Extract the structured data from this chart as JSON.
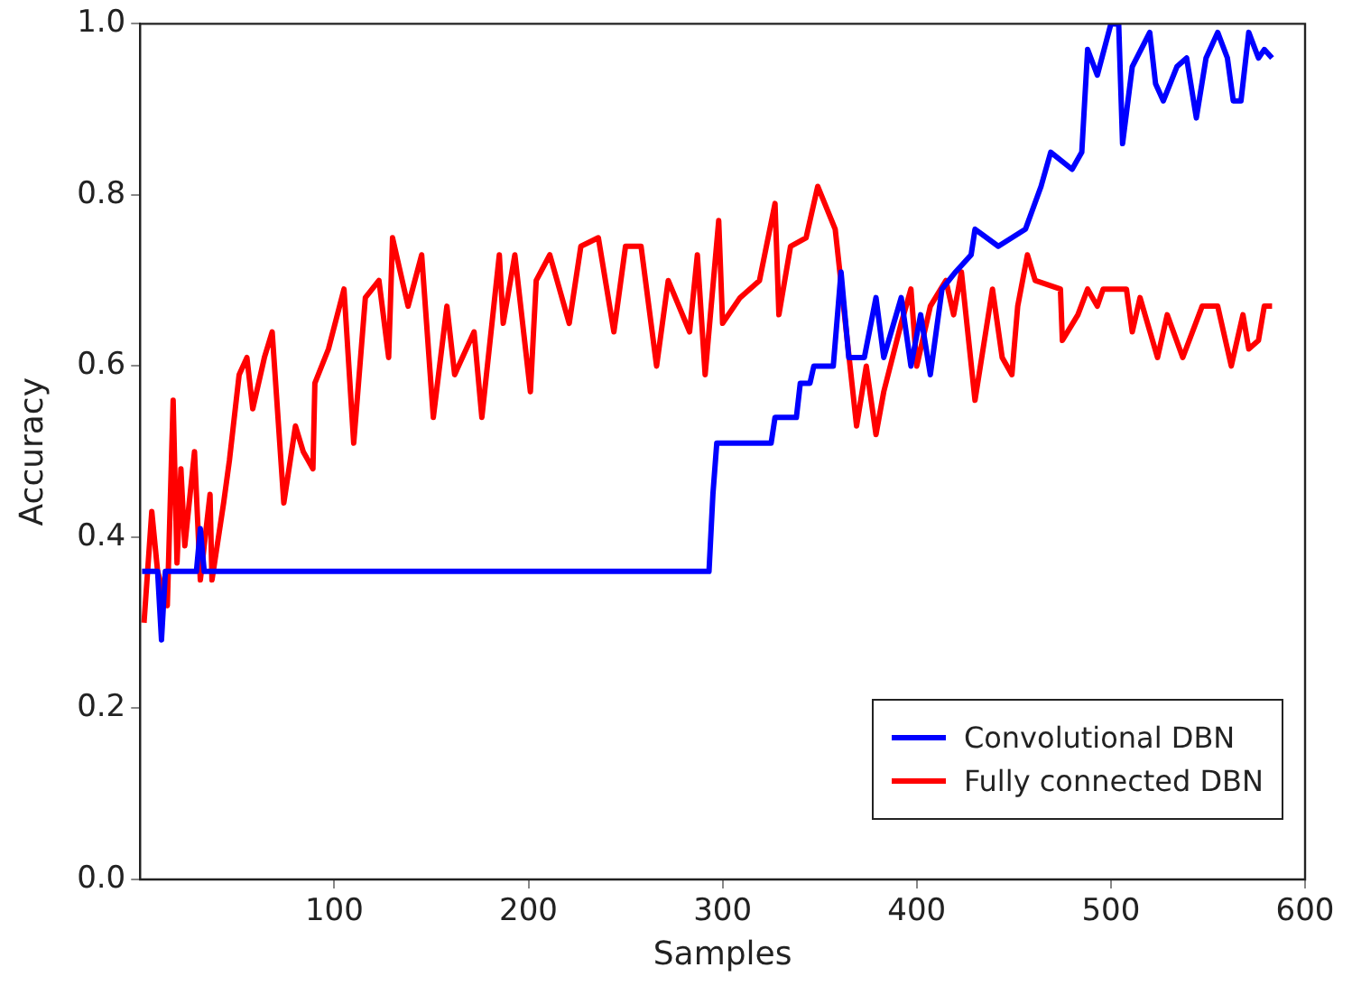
{
  "chart_data": {
    "type": "line",
    "xlabel": "Samples",
    "ylabel": "Accuracy",
    "xlim": [
      0,
      600
    ],
    "xticks": [
      100,
      200,
      300,
      400,
      500,
      600
    ],
    "ylim": [
      0,
      1
    ],
    "yticks": [
      {
        "value": 0,
        "label": "0.0"
      },
      0.2,
      0.4,
      0.6,
      0.8,
      {
        "value": 1,
        "label": "1.0"
      }
    ],
    "grid": false,
    "legend": "bottom right",
    "marker": "none",
    "line_style": "solid",
    "series": [
      {
        "name": "Convolutional DBN",
        "color": "#0000ff",
        "x": [
          1,
          9,
          11,
          13,
          29,
          31,
          33,
          293,
          295,
          297,
          325,
          327,
          338,
          340,
          345,
          347,
          357,
          361,
          365,
          373,
          379,
          383,
          392,
          397,
          402,
          407,
          413,
          420,
          428,
          430,
          442,
          456,
          464,
          469,
          480,
          485,
          488,
          493,
          500,
          504,
          506,
          511,
          520,
          523,
          527,
          534,
          539,
          544,
          549,
          555,
          560,
          563,
          567,
          571,
          576,
          579,
          583
        ],
        "values": [
          0.36,
          0.36,
          0.28,
          0.36,
          0.36,
          0.41,
          0.36,
          0.36,
          0.45,
          0.51,
          0.51,
          0.54,
          0.54,
          0.58,
          0.58,
          0.6,
          0.6,
          0.71,
          0.61,
          0.61,
          0.68,
          0.61,
          0.68,
          0.6,
          0.66,
          0.59,
          0.69,
          0.71,
          0.73,
          0.76,
          0.74,
          0.76,
          0.81,
          0.85,
          0.83,
          0.85,
          0.97,
          0.94,
          1.0,
          1.0,
          0.86,
          0.95,
          0.99,
          0.93,
          0.91,
          0.95,
          0.96,
          0.89,
          0.96,
          0.99,
          0.96,
          0.91,
          0.91,
          0.99,
          0.96,
          0.97,
          0.96
        ]
      },
      {
        "name": "Fully connected DBN",
        "color": "#ff0000",
        "x": [
          2,
          6,
          9,
          14,
          17,
          19,
          21,
          23,
          28,
          31,
          36,
          37,
          43,
          46,
          51,
          55,
          58,
          64,
          68,
          74,
          80,
          84,
          89,
          90,
          97,
          105,
          110,
          116,
          123,
          128,
          130,
          138,
          145,
          151,
          158,
          162,
          172,
          176,
          185,
          187,
          193,
          201,
          204,
          211,
          221,
          227,
          236,
          244,
          250,
          258,
          266,
          272,
          283,
          287,
          291,
          298,
          300,
          309,
          319,
          327,
          329,
          335,
          343,
          349,
          358,
          369,
          374,
          379,
          383,
          392,
          397,
          400,
          407,
          415,
          419,
          423,
          430,
          439,
          444,
          449,
          452,
          457,
          461,
          474,
          475,
          483,
          488,
          493,
          496,
          508,
          511,
          515,
          524,
          529,
          537,
          547,
          555,
          562,
          568,
          571,
          576,
          579,
          583
        ],
        "values": [
          0.3,
          0.43,
          0.36,
          0.32,
          0.56,
          0.37,
          0.48,
          0.39,
          0.5,
          0.35,
          0.45,
          0.35,
          0.44,
          0.49,
          0.59,
          0.61,
          0.55,
          0.61,
          0.64,
          0.44,
          0.53,
          0.5,
          0.48,
          0.58,
          0.62,
          0.69,
          0.51,
          0.68,
          0.7,
          0.61,
          0.75,
          0.67,
          0.73,
          0.54,
          0.67,
          0.59,
          0.64,
          0.54,
          0.73,
          0.65,
          0.73,
          0.57,
          0.7,
          0.73,
          0.65,
          0.74,
          0.75,
          0.64,
          0.74,
          0.74,
          0.6,
          0.7,
          0.64,
          0.73,
          0.59,
          0.77,
          0.65,
          0.68,
          0.7,
          0.79,
          0.66,
          0.74,
          0.75,
          0.81,
          0.76,
          0.53,
          0.6,
          0.52,
          0.57,
          0.65,
          0.69,
          0.6,
          0.67,
          0.7,
          0.66,
          0.71,
          0.56,
          0.69,
          0.61,
          0.59,
          0.67,
          0.73,
          0.7,
          0.69,
          0.63,
          0.66,
          0.69,
          0.67,
          0.69,
          0.69,
          0.64,
          0.68,
          0.61,
          0.66,
          0.61,
          0.67,
          0.67,
          0.6,
          0.66,
          0.62,
          0.63,
          0.67,
          0.67
        ]
      }
    ]
  }
}
